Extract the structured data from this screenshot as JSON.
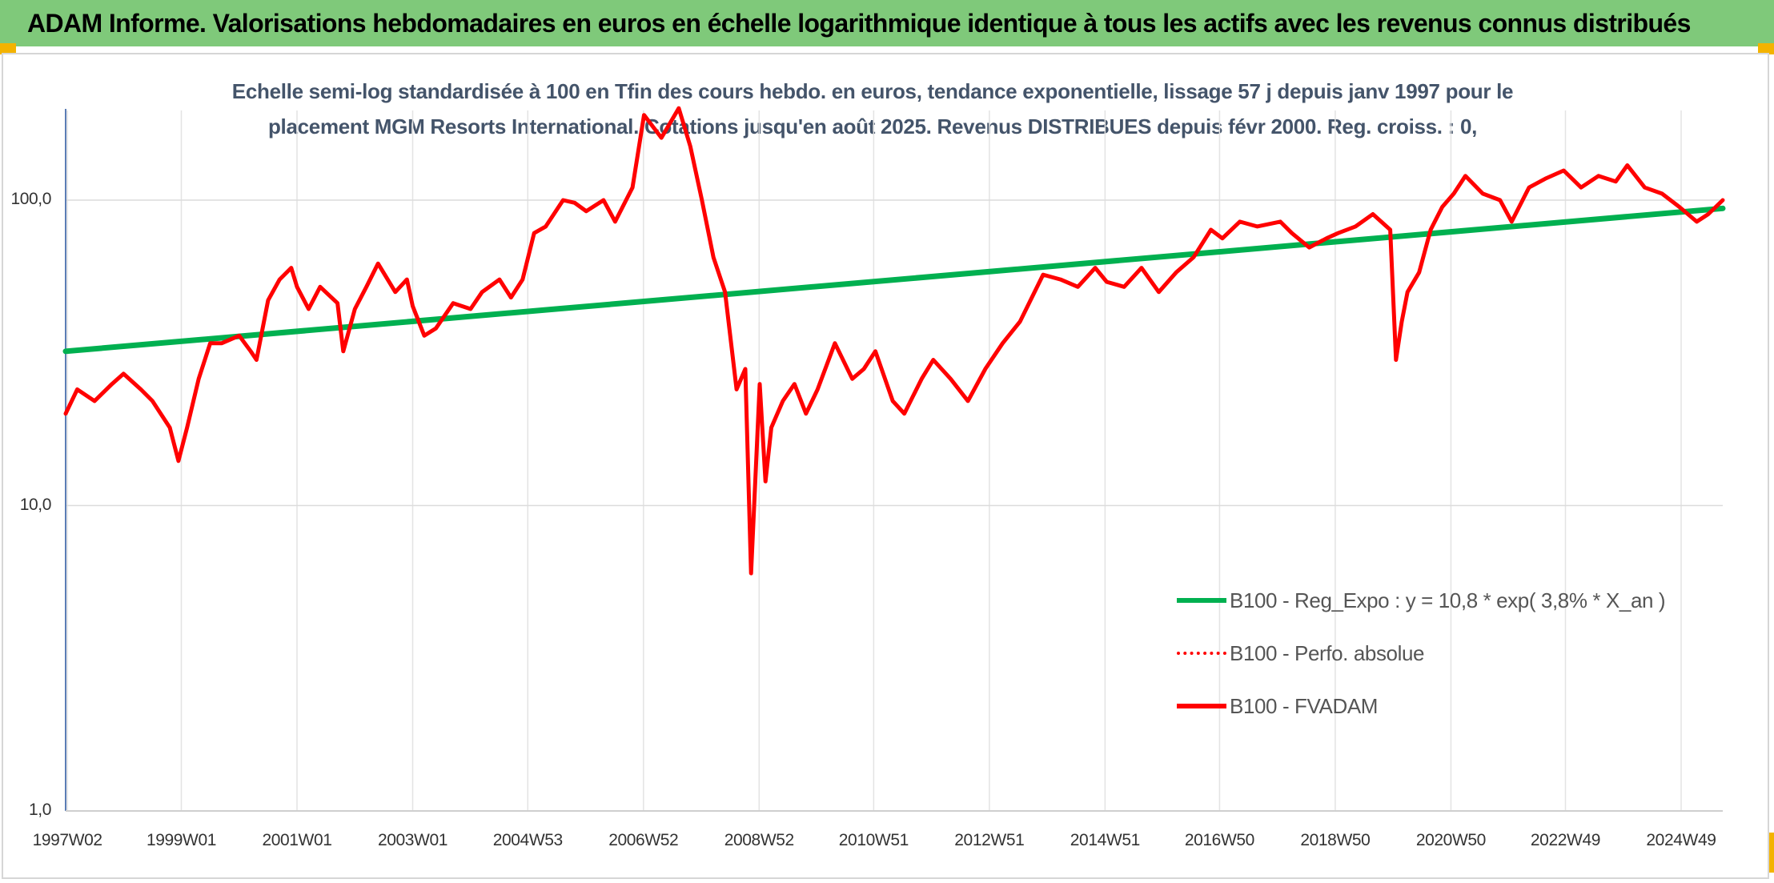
{
  "header": {
    "title": "ADAM Informe. Valorisations hebdomadaires en euros en échelle logarithmique identique à tous les actifs avec les revenus connus distribués"
  },
  "chart_data": {
    "type": "line",
    "title": "Echelle semi-log standardisée à 100 en Tfin des cours hebdo. en euros, tendance exponentielle, lissage 57 j depuis janv 1997 pour le placement MGM Resorts International. Cotations jusqu'en août 2025. Revenus DISTRIBUES depuis févr 2000. Reg. croiss. : 0,",
    "title_lines": [
      "Echelle semi-log standardisée à 100 en Tfin des cours hebdo. en euros, tendance exponentielle, lissage 57 j depuis janv 1997 pour le",
      "placement MGM Resorts International. Cotations jusqu'en août 2025. Revenus DISTRIBUES depuis févr 2000. Reg. croiss. : 0,"
    ],
    "xlabel": "",
    "ylabel": "",
    "y_scale": "log",
    "ylim": [
      1,
      200
    ],
    "xlim": [
      1997.0,
      2025.65
    ],
    "y_ticks": [
      1,
      10,
      100
    ],
    "y_tick_labels": [
      "1,0",
      "10,0",
      "100,0"
    ],
    "x_ticks": [
      1997.03,
      1999.0,
      2001.0,
      2003.0,
      2004.99,
      2006.99,
      2008.99,
      2010.97,
      2012.97,
      2014.97,
      2016.95,
      2018.95,
      2020.95,
      2022.93,
      2024.93
    ],
    "x_tick_labels": [
      "1997W02",
      "1999W01",
      "2001W01",
      "2003W01",
      "2004W53",
      "2006W52",
      "2008W52",
      "2010W51",
      "2012W51",
      "2014W51",
      "2016W50",
      "2018W50",
      "2020W50",
      "2022W49",
      "2024W49"
    ],
    "grid": true,
    "legend_position": "bottom-right",
    "series": [
      {
        "name": "B100 - Reg_Expo : y = 10,8 * exp( 3,8% *  X_an )",
        "color": "#00b050",
        "style": "solid",
        "x": [
          1997.0,
          2025.65
        ],
        "y": [
          32,
          94
        ]
      },
      {
        "name": "B100 - Perfo. absolue",
        "color": "#ff0000",
        "style": "dotted",
        "x": [],
        "y": []
      },
      {
        "name": "B100 - FVADAM",
        "color": "#ff0000",
        "style": "solid",
        "x": [
          1997.0,
          1997.2,
          1997.5,
          1997.8,
          1998.0,
          1998.3,
          1998.5,
          1998.8,
          1998.95,
          1999.1,
          1999.3,
          1999.5,
          1999.7,
          2000.0,
          2000.2,
          2000.3,
          2000.5,
          2000.7,
          2000.9,
          2001.0,
          2001.2,
          2001.4,
          2001.7,
          2001.8,
          2002.0,
          2002.2,
          2002.4,
          2002.7,
          2002.9,
          2003.0,
          2003.2,
          2003.4,
          2003.7,
          2004.0,
          2004.2,
          2004.5,
          2004.7,
          2004.9,
          2005.1,
          2005.3,
          2005.6,
          2005.8,
          2006.0,
          2006.3,
          2006.5,
          2006.8,
          2007.0,
          2007.3,
          2007.6,
          2007.8,
          2008.0,
          2008.2,
          2008.4,
          2008.6,
          2008.75,
          2008.85,
          2009.0,
          2009.1,
          2009.2,
          2009.4,
          2009.6,
          2009.8,
          2010.0,
          2010.3,
          2010.6,
          2010.8,
          2011.0,
          2011.3,
          2011.5,
          2011.8,
          2012.0,
          2012.3,
          2012.6,
          2012.9,
          2013.2,
          2013.5,
          2013.9,
          2014.2,
          2014.5,
          2014.8,
          2015.0,
          2015.3,
          2015.6,
          2015.9,
          2016.2,
          2016.5,
          2016.8,
          2017.0,
          2017.3,
          2017.6,
          2018.0,
          2018.2,
          2018.5,
          2018.8,
          2019.0,
          2019.3,
          2019.6,
          2019.9,
          2020.0,
          2020.1,
          2020.2,
          2020.4,
          2020.6,
          2020.8,
          2021.0,
          2021.2,
          2021.5,
          2021.8,
          2022.0,
          2022.3,
          2022.6,
          2022.9,
          2023.2,
          2023.5,
          2023.8,
          2024.0,
          2024.3,
          2024.6,
          2024.9,
          2025.2,
          2025.4,
          2025.65
        ],
        "y": [
          20,
          24,
          22,
          25,
          27,
          24,
          22,
          18,
          14,
          18,
          26,
          34,
          34,
          36,
          32,
          30,
          47,
          55,
          60,
          52,
          44,
          52,
          46,
          32,
          44,
          52,
          62,
          50,
          55,
          45,
          36,
          38,
          46,
          44,
          50,
          55,
          48,
          55,
          78,
          82,
          100,
          98,
          92,
          100,
          85,
          110,
          190,
          160,
          200,
          150,
          100,
          65,
          50,
          24,
          28,
          6,
          25,
          12,
          18,
          22,
          25,
          20,
          24,
          34,
          26,
          28,
          32,
          22,
          20,
          26,
          30,
          26,
          22,
          28,
          34,
          40,
          57,
          55,
          52,
          60,
          54,
          52,
          60,
          50,
          58,
          65,
          80,
          75,
          85,
          82,
          85,
          78,
          70,
          75,
          78,
          82,
          90,
          80,
          30,
          40,
          50,
          58,
          80,
          95,
          105,
          120,
          105,
          100,
          85,
          110,
          118,
          125,
          110,
          120,
          115,
          130,
          110,
          105,
          95,
          85,
          90,
          100
        ]
      }
    ]
  }
}
